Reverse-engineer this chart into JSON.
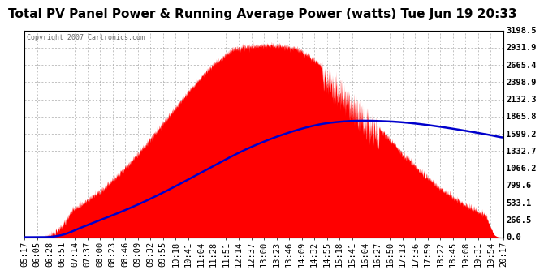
{
  "title": "Total PV Panel Power & Running Average Power (watts) Tue Jun 19 20:33",
  "copyright": "Copyright 2007 Cartronics.com",
  "bg_color": "#FFFFFF",
  "plot_bg_color": "#FFFFFF",
  "fill_color": "#FF0000",
  "line_color": "#0000CC",
  "y_max": 3198.5,
  "y_min": 0.0,
  "y_ticks": [
    0.0,
    266.5,
    533.1,
    799.6,
    1066.2,
    1332.7,
    1599.2,
    1865.8,
    2132.3,
    2398.9,
    2665.4,
    2931.9,
    3198.5
  ],
  "x_labels": [
    "05:17",
    "06:05",
    "06:28",
    "06:51",
    "07:14",
    "07:37",
    "08:00",
    "08:23",
    "08:46",
    "09:09",
    "09:32",
    "09:55",
    "10:18",
    "10:41",
    "11:04",
    "11:28",
    "11:51",
    "12:14",
    "12:37",
    "13:00",
    "13:23",
    "13:46",
    "14:09",
    "14:32",
    "14:55",
    "15:18",
    "15:41",
    "16:04",
    "16:27",
    "16:50",
    "17:13",
    "17:36",
    "17:59",
    "18:22",
    "18:45",
    "19:08",
    "19:31",
    "19:54",
    "20:17"
  ],
  "grid_color": "#AAAAAA",
  "axis_color": "#000000",
  "title_fontsize": 11,
  "tick_fontsize": 7.5,
  "copyright_fontsize": 6
}
